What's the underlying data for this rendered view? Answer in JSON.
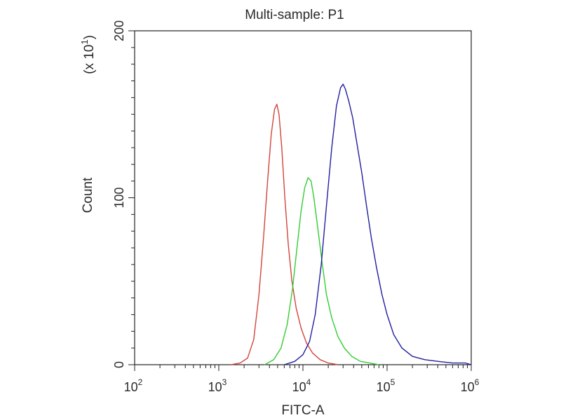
{
  "chart_data": {
    "type": "line",
    "title": "Multi-sample: P1",
    "xlabel": "FITC-A",
    "ylabel": "Count",
    "y_multiplier_label": "(x 10",
    "y_multiplier_exp": "1",
    "y_multiplier_close": ")",
    "x_scale": "log",
    "xlim": [
      100,
      1000000
    ],
    "ylim": [
      0,
      200
    ],
    "x_ticks": [
      {
        "base": "10",
        "exp": "2",
        "value": 100
      },
      {
        "base": "10",
        "exp": "3",
        "value": 1000
      },
      {
        "base": "10",
        "exp": "4",
        "value": 10000
      },
      {
        "base": "10",
        "exp": "5",
        "value": 100000
      },
      {
        "base": "10",
        "exp": "6",
        "value": 1000000
      }
    ],
    "y_ticks": [
      {
        "label": "0",
        "value": 0
      },
      {
        "label": "100",
        "value": 100
      },
      {
        "label": "200",
        "value": 200
      }
    ],
    "grid": false,
    "series": [
      {
        "color": "#d0453b",
        "x": [
          1400,
          1800,
          2200,
          2600,
          3000,
          3400,
          3800,
          4200,
          4600,
          4900,
          5200,
          5600,
          6100,
          6700,
          7400,
          8300,
          9500,
          11000,
          13000,
          16000,
          20000,
          26000
        ],
        "y": [
          0,
          1,
          4,
          15,
          42,
          76,
          110,
          138,
          153,
          156,
          150,
          130,
          100,
          72,
          50,
          34,
          22,
          13,
          7,
          3,
          1,
          0
        ]
      },
      {
        "color": "#33cc33",
        "x": [
          3500,
          4500,
          5500,
          6500,
          7500,
          8500,
          9500,
          10500,
          11500,
          12500,
          13500,
          15000,
          17000,
          19000,
          22000,
          26000,
          31000,
          38000,
          48000,
          62000,
          80000
        ],
        "y": [
          0,
          3,
          10,
          24,
          45,
          70,
          92,
          106,
          112,
          110,
          100,
          82,
          60,
          42,
          28,
          17,
          10,
          5,
          2,
          1,
          0
        ]
      },
      {
        "color": "#2020a0",
        "x": [
          6000,
          8000,
          10000,
          12000,
          14000,
          16500,
          19000,
          22000,
          25000,
          28000,
          30000,
          32000,
          35000,
          39000,
          44000,
          50000,
          57000,
          65000,
          75000,
          87000,
          100000,
          120000,
          150000,
          200000,
          280000,
          400000,
          600000,
          850000,
          1000000
        ],
        "y": [
          0,
          2,
          6,
          14,
          30,
          60,
          95,
          130,
          155,
          166,
          168,
          165,
          158,
          148,
          132,
          115,
          95,
          76,
          58,
          42,
          30,
          18,
          10,
          5,
          3,
          2,
          1,
          1,
          0
        ]
      }
    ]
  }
}
